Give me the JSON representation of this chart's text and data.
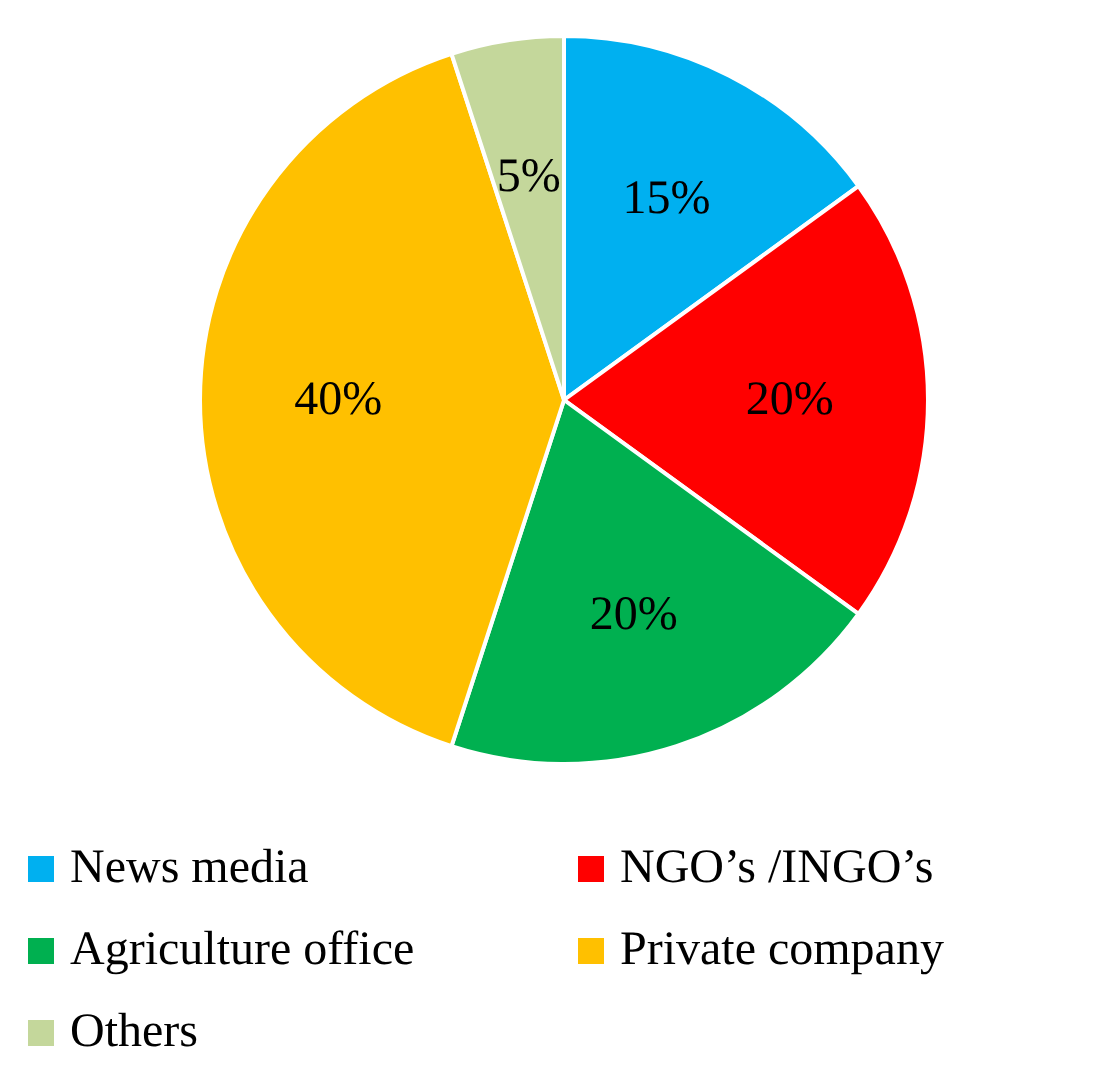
{
  "chart_data": {
    "type": "pie",
    "categories": [
      "News media",
      "NGO’s /INGO’s",
      "Agriculture office",
      "Private company",
      "Others"
    ],
    "values": [
      15,
      20,
      20,
      40,
      5
    ],
    "colors": [
      "#00b0f0",
      "#ff0000",
      "#00b050",
      "#ffc000",
      "#c4d79b"
    ],
    "value_labels": [
      "15%",
      "20%",
      "20%",
      "40%",
      "5%"
    ],
    "legend": "bottom"
  }
}
